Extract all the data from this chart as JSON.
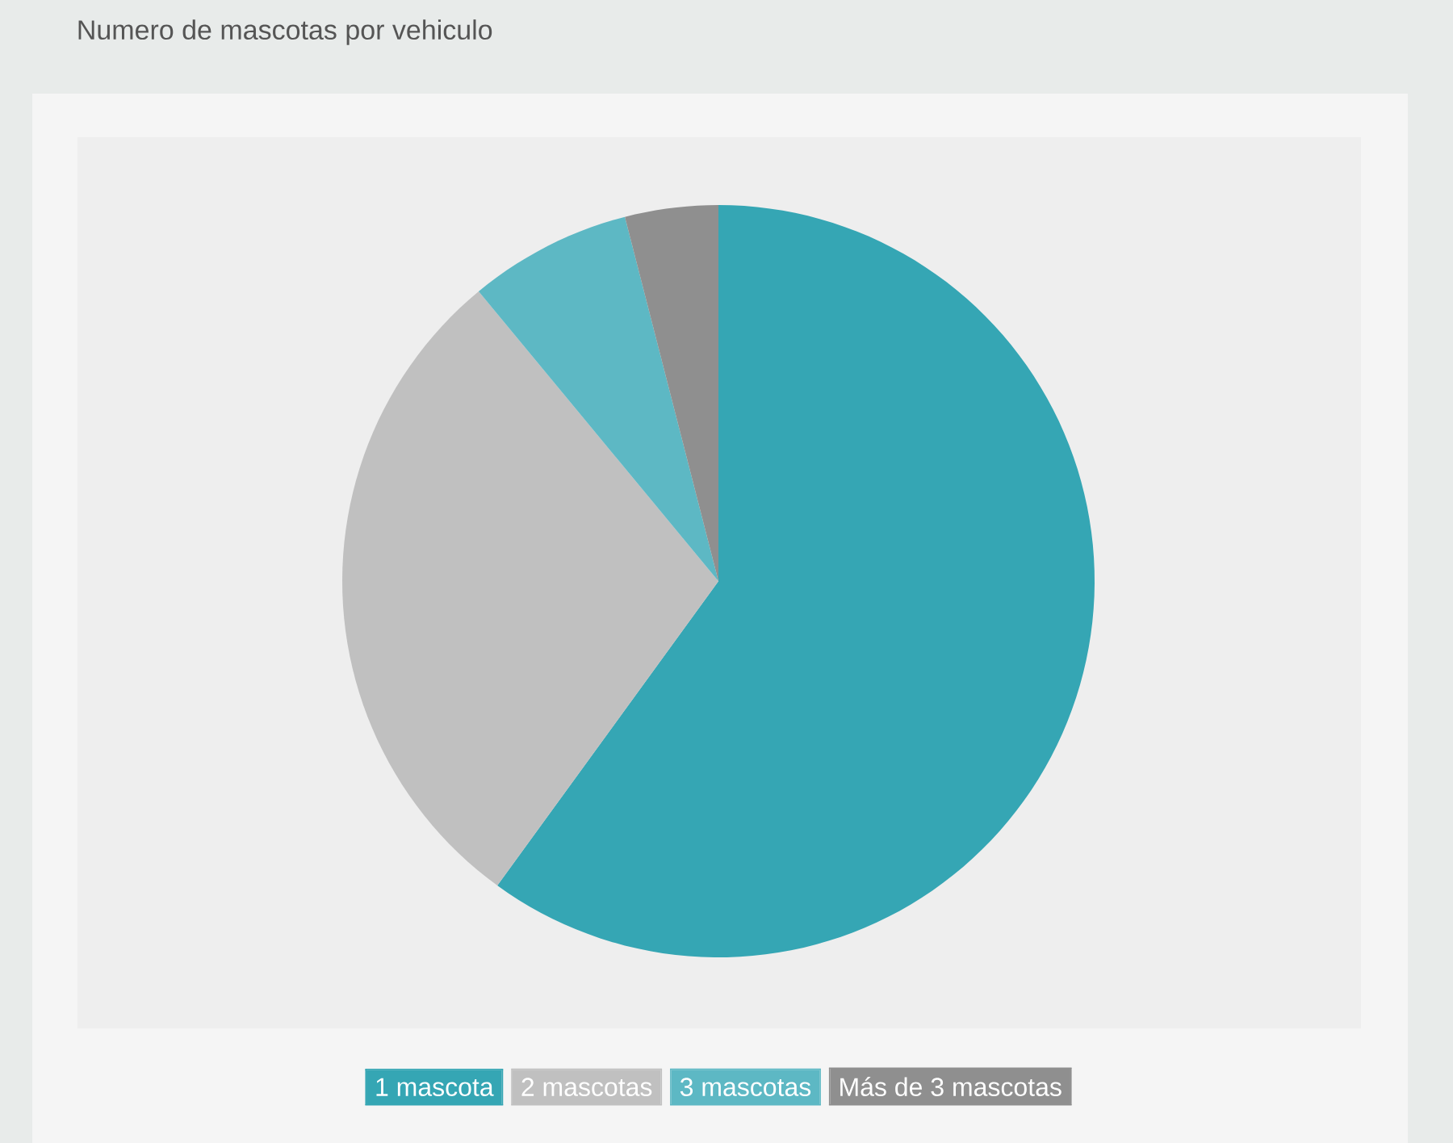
{
  "chart_data": {
    "type": "pie",
    "title": "Numero de mascotas por vehiculo",
    "categories": [
      "1 mascota",
      "2 mascotas",
      "3 mascotas",
      "Más de 3 mascotas"
    ],
    "values": [
      60,
      29,
      7,
      4
    ],
    "colors": [
      "#35a6b4",
      "#c0c0c0",
      "#5db8c4",
      "#8f8f8f"
    ],
    "legend": "bottom"
  }
}
